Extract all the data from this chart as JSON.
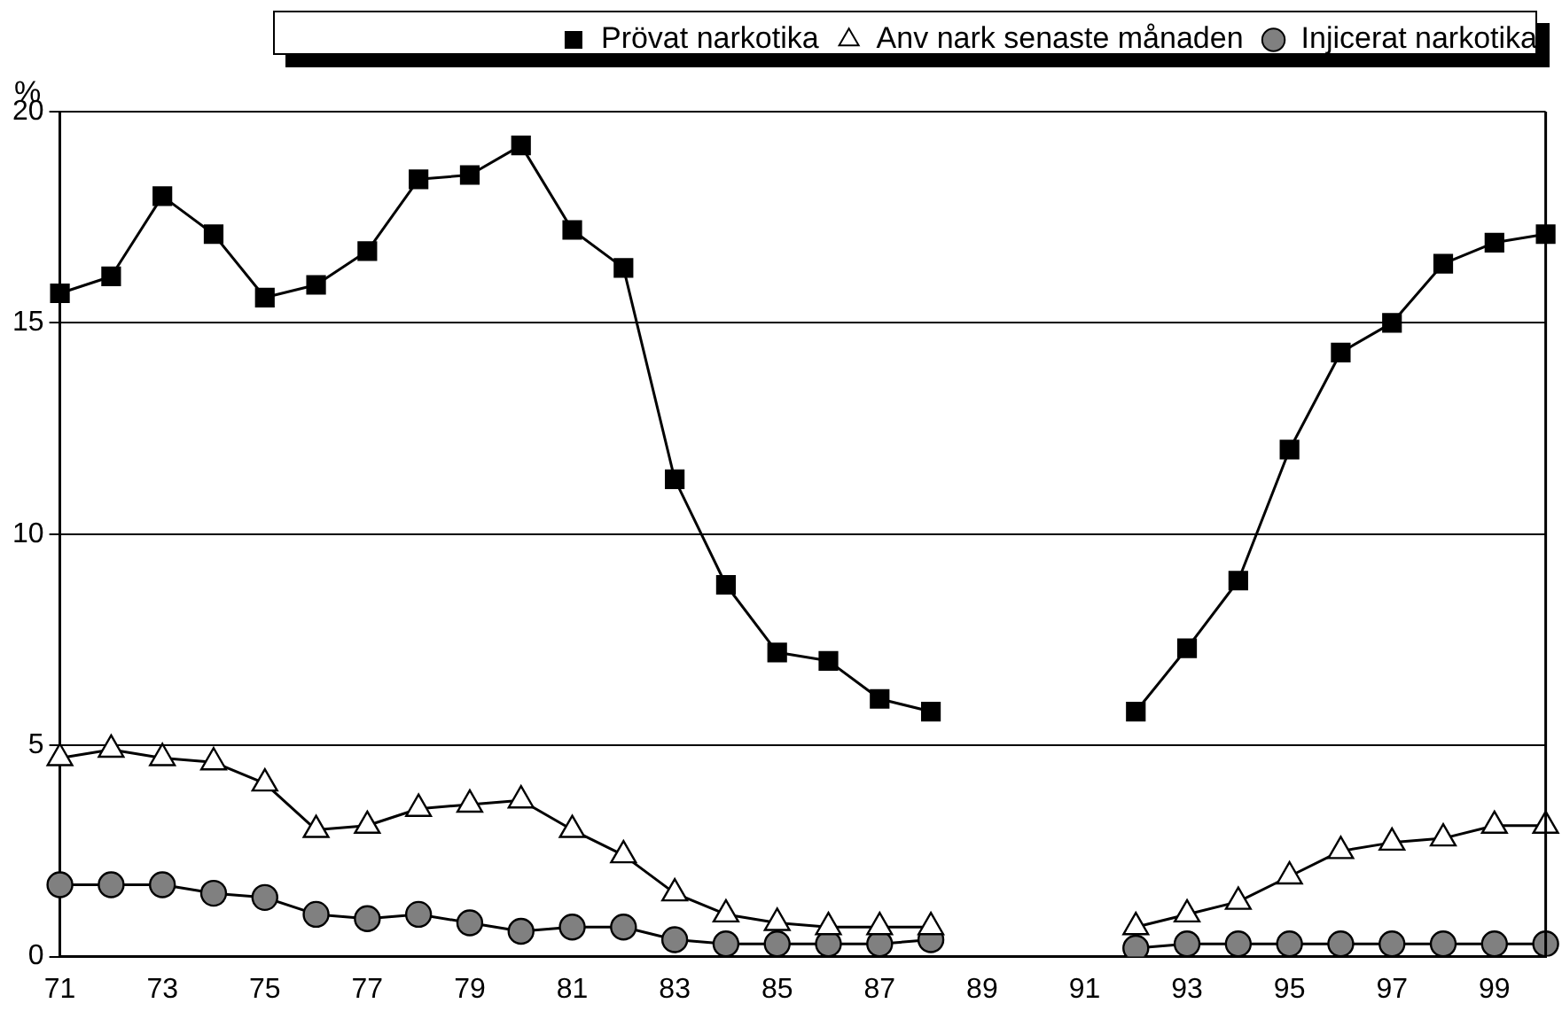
{
  "chart_data": {
    "type": "line",
    "ylabel": "%",
    "categories": [
      "71",
      null,
      "73",
      null,
      "75",
      null,
      "77",
      null,
      "79",
      null,
      "81",
      null,
      "83",
      null,
      "85",
      null,
      "87",
      null,
      "89",
      null,
      "91",
      null,
      "93",
      null,
      "95",
      null,
      "97",
      null,
      "99",
      null
    ],
    "series": [
      {
        "name": "Prövat narkotika",
        "color": "#000000",
        "marker": "square",
        "values": [
          15.7,
          16.1,
          18.0,
          17.1,
          15.6,
          15.9,
          16.7,
          18.4,
          18.5,
          19.2,
          17.2,
          16.3,
          11.3,
          8.8,
          7.2,
          7.0,
          6.1,
          5.8,
          null,
          null,
          null,
          5.8,
          7.3,
          8.9,
          12.0,
          14.3,
          15.0,
          16.4,
          16.9,
          17.1
        ]
      },
      {
        "name": "Anv nark senaste månaden",
        "color": "#ffffff",
        "marker": "triangle",
        "values": [
          4.7,
          4.9,
          4.7,
          4.6,
          4.1,
          3.0,
          3.1,
          3.5,
          3.6,
          3.7,
          3.0,
          2.4,
          1.5,
          1.0,
          0.8,
          0.7,
          0.7,
          0.7,
          null,
          null,
          null,
          0.7,
          1.0,
          1.3,
          1.9,
          2.5,
          2.7,
          2.8,
          3.1,
          3.1
        ]
      },
      {
        "name": "Injicerat narkotika",
        "color": "#808080",
        "marker": "circle",
        "values": [
          1.7,
          1.7,
          1.7,
          1.5,
          1.4,
          1.0,
          0.9,
          1.0,
          0.8,
          0.6,
          0.7,
          0.7,
          0.4,
          0.3,
          0.3,
          0.3,
          0.3,
          0.4,
          null,
          null,
          null,
          0.2,
          0.3,
          0.3,
          0.3,
          0.3,
          0.3,
          0.3,
          0.3,
          0.3
        ]
      }
    ],
    "ylim": [
      0,
      20
    ],
    "yticks": [
      0,
      5,
      10,
      15,
      20
    ],
    "grid": "y",
    "legend": "top right",
    "line_style": "solid"
  }
}
